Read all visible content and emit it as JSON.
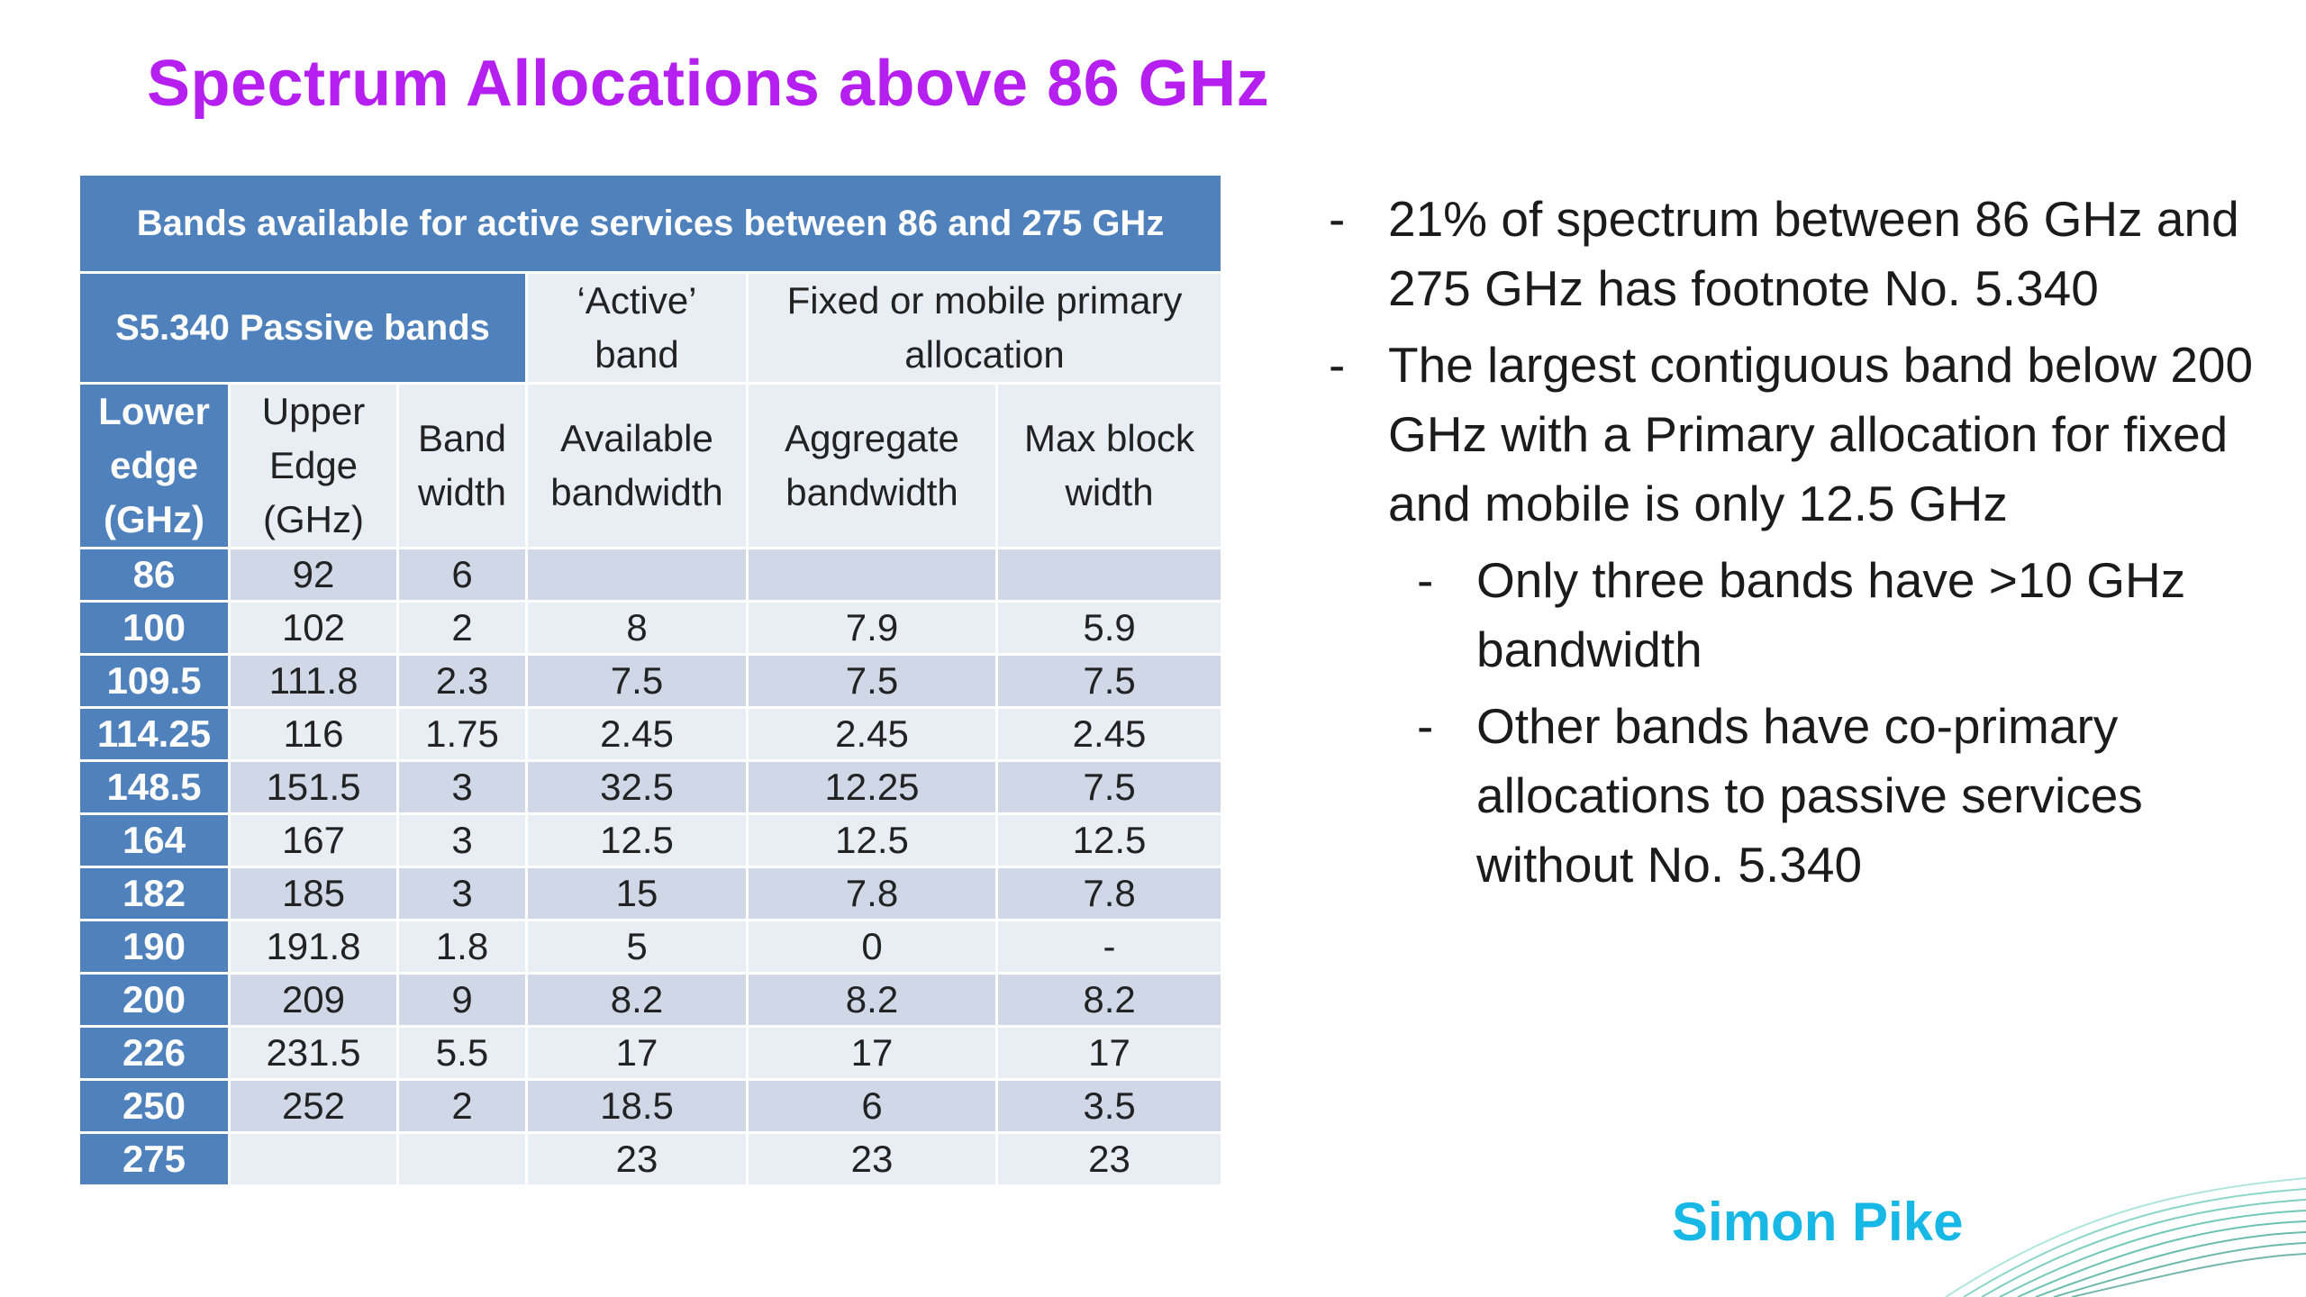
{
  "title": "Spectrum Allocations above 86 GHz",
  "table": {
    "banner": "Bands available for active services between 86 and 275 GHz",
    "passive_header": "S5.340 Passive bands",
    "active_header": [
      "‘Active’",
      "band"
    ],
    "fixed_header": [
      "Fixed or mobile primary",
      "allocation"
    ],
    "col_headers": [
      [
        "Lower",
        "edge",
        "(GHz)"
      ],
      [
        "Upper",
        "Edge",
        "(GHz)"
      ],
      [
        "Band",
        "width"
      ],
      [
        "Available",
        "bandwidth"
      ],
      [
        "Aggregate",
        "bandwidth"
      ],
      [
        "Max block",
        "width"
      ]
    ],
    "rows": [
      [
        "86",
        "92",
        "6",
        "",
        "",
        ""
      ],
      [
        "100",
        "102",
        "2",
        "8",
        "7.9",
        "5.9"
      ],
      [
        "109.5",
        "111.8",
        "2.3",
        "7.5",
        "7.5",
        "7.5"
      ],
      [
        "114.25",
        "116",
        "1.75",
        "2.45",
        "2.45",
        "2.45"
      ],
      [
        "148.5",
        "151.5",
        "3",
        "32.5",
        "12.25",
        "7.5"
      ],
      [
        "164",
        "167",
        "3",
        "12.5",
        "12.5",
        "12.5"
      ],
      [
        "182",
        "185",
        "3",
        "15",
        "7.8",
        "7.8"
      ],
      [
        "190",
        "191.8",
        "1.8",
        "5",
        "0",
        "-"
      ],
      [
        "200",
        "209",
        "9",
        "8.2",
        "8.2",
        "8.2"
      ],
      [
        "226",
        "231.5",
        "5.5",
        "17",
        "17",
        "17"
      ],
      [
        "250",
        "252",
        "2",
        "18.5",
        "6",
        "3.5"
      ],
      [
        "275",
        "",
        "",
        "23",
        "23",
        "23"
      ]
    ]
  },
  "bullets": [
    {
      "level": 1,
      "dash": "-",
      "text": "21% of spectrum between 86 GHz and 275 GHz has footnote No. 5.340"
    },
    {
      "level": 1,
      "dash": "-",
      "text": "The largest contiguous band below 200 GHz with a Primary allocation for fixed and mobile is only 12.5 GHz"
    },
    {
      "level": 2,
      "dash": "-",
      "text": "Only three bands have >10 GHz bandwidth"
    },
    {
      "level": 2,
      "dash": "-",
      "text": "Other bands have co-primary allocations to passive services without No. 5.340"
    }
  ],
  "author": "Simon Pike",
  "colors": {
    "title": "#b51ff0",
    "header_blue": "#4f81bd",
    "row_dark": "#d0d8e8",
    "row_light": "#e9edf4",
    "author": "#17b7e6"
  }
}
